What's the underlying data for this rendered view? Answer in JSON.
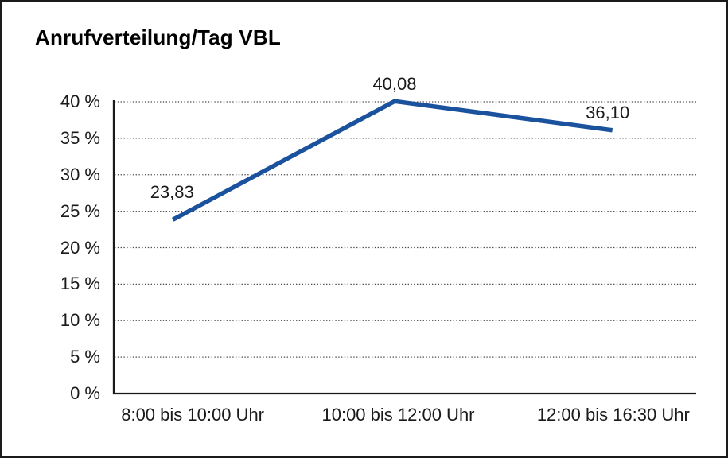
{
  "chart_data": {
    "type": "line",
    "title": "Anrufverteilung/Tag VBL",
    "categories": [
      "8:00 bis 10:00 Uhr",
      "10:00 bis 12:00 Uhr",
      "12:00 bis 16:30 Uhr"
    ],
    "values": [
      23.83,
      40.08,
      36.1
    ],
    "data_labels": [
      "23,83",
      "40,08",
      "36,10"
    ],
    "y_ticks": [
      0,
      5,
      10,
      15,
      20,
      25,
      30,
      35,
      40
    ],
    "y_tick_labels": [
      "0 %",
      "5 %",
      "10 %",
      "15 %",
      "20 %",
      "25 %",
      "30 %",
      "35 %",
      "40 %"
    ],
    "ylim": [
      0,
      40
    ],
    "xlabel": "",
    "ylabel": "",
    "grid": "horizontal-dotted",
    "legend": "none",
    "line_color": "#1B529E",
    "axis_color": "#1a1a1a",
    "gridline_color": "#4d4d4d",
    "text_color": "#1a1a1a",
    "background": "#ffffff",
    "frame_border_color": "#1a1a1a"
  }
}
